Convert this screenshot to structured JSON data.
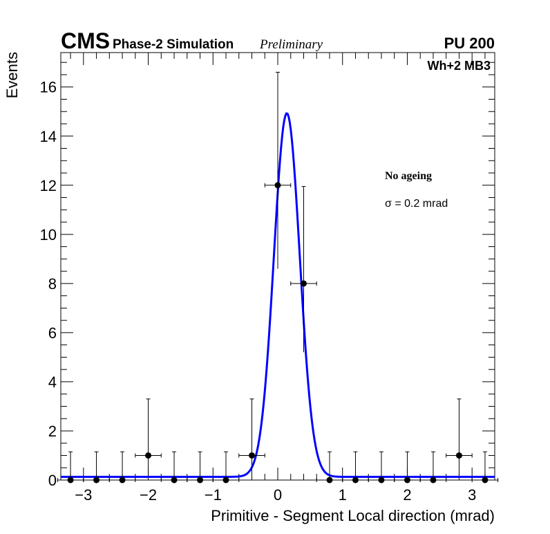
{
  "header": {
    "experiment": "CMS",
    "subtitle": "Phase-2 Simulation",
    "status": "Preliminary",
    "pileup": "PU 200",
    "region": "Wh+2 MB3"
  },
  "annotations": {
    "condition": "No ageing",
    "sigma_label": "σ = 0.2 mrad"
  },
  "chart_data": {
    "type": "scatter",
    "title": "",
    "xlabel": "Primitive - Segment Local direction (mrad)",
    "ylabel": "Events",
    "xlim": [
      -3.35,
      3.35
    ],
    "ylim": [
      0,
      17.4
    ],
    "xticks": [
      -3,
      -2,
      -1,
      0,
      1,
      2,
      3
    ],
    "xtick_labels": [
      "−3",
      "−2",
      "−1",
      "0",
      "1",
      "2",
      "3"
    ],
    "yticks": [
      0,
      2,
      4,
      6,
      8,
      10,
      12,
      14,
      16
    ],
    "ytick_labels": [
      "0",
      "2",
      "4",
      "6",
      "8",
      "10",
      "12",
      "14",
      "16"
    ],
    "bin_half_width": 0.2,
    "series": [
      {
        "name": "Data",
        "x": [
          -3.2,
          -2.8,
          -2.4,
          -2.0,
          -1.6,
          -1.2,
          -0.8,
          -0.4,
          0.0,
          0.4,
          0.8,
          1.2,
          1.6,
          2.0,
          2.4,
          2.8,
          3.2
        ],
        "y": [
          0,
          0,
          0,
          1,
          0,
          0,
          0,
          1,
          12,
          8,
          0,
          0,
          0,
          0,
          0,
          1,
          0
        ],
        "err_up": [
          1.15,
          1.15,
          1.15,
          2.3,
          1.15,
          1.15,
          1.15,
          2.3,
          4.6,
          3.95,
          1.15,
          1.15,
          1.15,
          1.15,
          1.15,
          2.3,
          1.15
        ],
        "err_down": [
          0,
          0,
          0,
          0.8,
          0,
          0,
          0,
          0.8,
          3.4,
          2.8,
          0,
          0,
          0,
          0,
          0,
          0.8,
          0
        ]
      }
    ],
    "fit": {
      "name": "Gaussian fit",
      "function": "gaussian",
      "amplitude": 14.8,
      "mean": 0.14,
      "sigma": 0.2,
      "baseline": 0.13,
      "color": "#0000ff"
    },
    "marker_color": "#000000"
  }
}
